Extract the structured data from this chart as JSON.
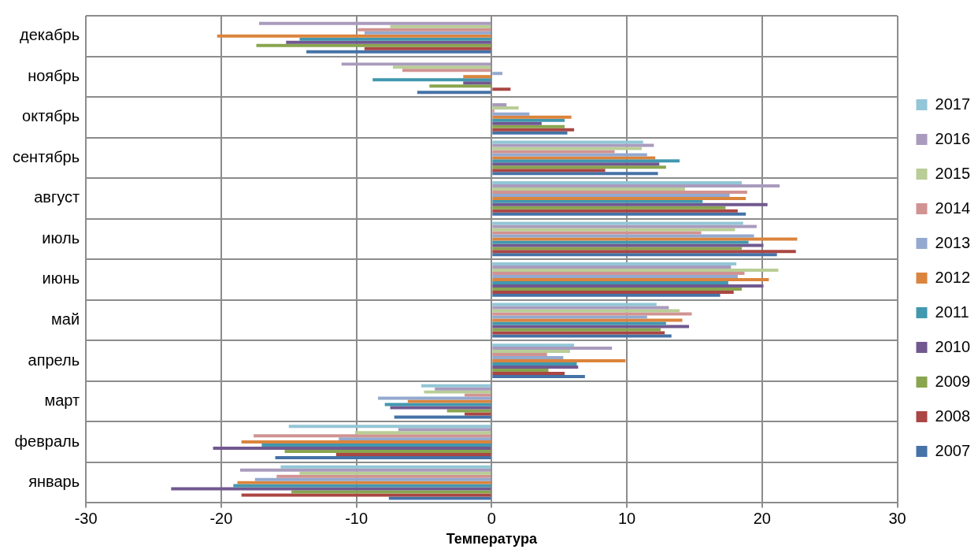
{
  "chart_data": {
    "type": "bar",
    "orientation": "horizontal",
    "xlabel": "Температура",
    "categories": [
      "декабрь",
      "ноябрь",
      "октябрь",
      "сентябрь",
      "август",
      "июль",
      "июнь",
      "май",
      "апрель",
      "март",
      "февраль",
      "январь"
    ],
    "xlim": [
      -30,
      30
    ],
    "xticks": [
      -30,
      -20,
      -10,
      0,
      10,
      20,
      30
    ],
    "grid": true,
    "legend": "right",
    "series": [
      {
        "name": "2017",
        "color": "#93c6d6",
        "values": [
          null,
          null,
          null,
          11.2,
          18.5,
          18.6,
          18.1,
          12.2,
          6.1,
          -5.2,
          -15.0,
          -15.6
        ]
      },
      {
        "name": "2016",
        "color": "#a99bbd",
        "values": [
          -17.2,
          -11.1,
          1.1,
          12.0,
          21.3,
          19.6,
          17.7,
          13.1,
          8.9,
          -4.2,
          -6.9,
          -18.6
        ]
      },
      {
        "name": "2015",
        "color": "#b9cd96",
        "values": [
          -7.5,
          -7.3,
          2.0,
          11.1,
          14.3,
          18.0,
          21.2,
          13.9,
          5.8,
          -5.0,
          -10.1,
          -14.2
        ]
      },
      {
        "name": "2014",
        "color": "#d19392",
        "values": [
          -9.9,
          -6.6,
          0.2,
          9.1,
          18.9,
          15.5,
          18.7,
          14.8,
          4.1,
          -2.0,
          -17.6,
          -15.9
        ]
      },
      {
        "name": "2013",
        "color": "#93a9cf",
        "values": [
          -9.4,
          0.8,
          2.8,
          11.5,
          17.6,
          19.4,
          18.2,
          11.5,
          5.3,
          -8.4,
          -11.3,
          -17.5
        ]
      },
      {
        "name": "2012",
        "color": "#db843d",
        "values": [
          -20.3,
          -2.1,
          5.9,
          12.1,
          18.8,
          22.6,
          20.5,
          14.1,
          9.9,
          -6.2,
          -18.5,
          -18.8
        ]
      },
      {
        "name": "2011",
        "color": "#4198af",
        "values": [
          -14.2,
          -8.8,
          5.4,
          13.9,
          15.6,
          19.0,
          17.5,
          12.9,
          6.3,
          -7.9,
          -17.0,
          -19.1
        ]
      },
      {
        "name": "2010",
        "color": "#71588f",
        "values": [
          -15.2,
          -2.1,
          3.7,
          12.4,
          20.4,
          20.1,
          20.1,
          14.6,
          6.4,
          -7.5,
          -20.6,
          -23.7
        ]
      },
      {
        "name": "2009",
        "color": "#89a54e",
        "values": [
          -17.4,
          -4.6,
          5.4,
          12.9,
          17.3,
          18.5,
          18.5,
          12.5,
          4.2,
          -3.3,
          -15.3,
          -14.8
        ]
      },
      {
        "name": "2008",
        "color": "#aa4643",
        "values": [
          -9.4,
          1.4,
          6.1,
          8.4,
          18.2,
          22.5,
          17.9,
          12.8,
          5.4,
          -2.0,
          -11.5,
          -18.5
        ]
      },
      {
        "name": "2007",
        "color": "#4572a7",
        "values": [
          -13.7,
          -5.5,
          5.6,
          12.3,
          18.8,
          21.1,
          16.9,
          13.3,
          6.9,
          -7.2,
          -16.0,
          -7.6
        ]
      }
    ]
  }
}
